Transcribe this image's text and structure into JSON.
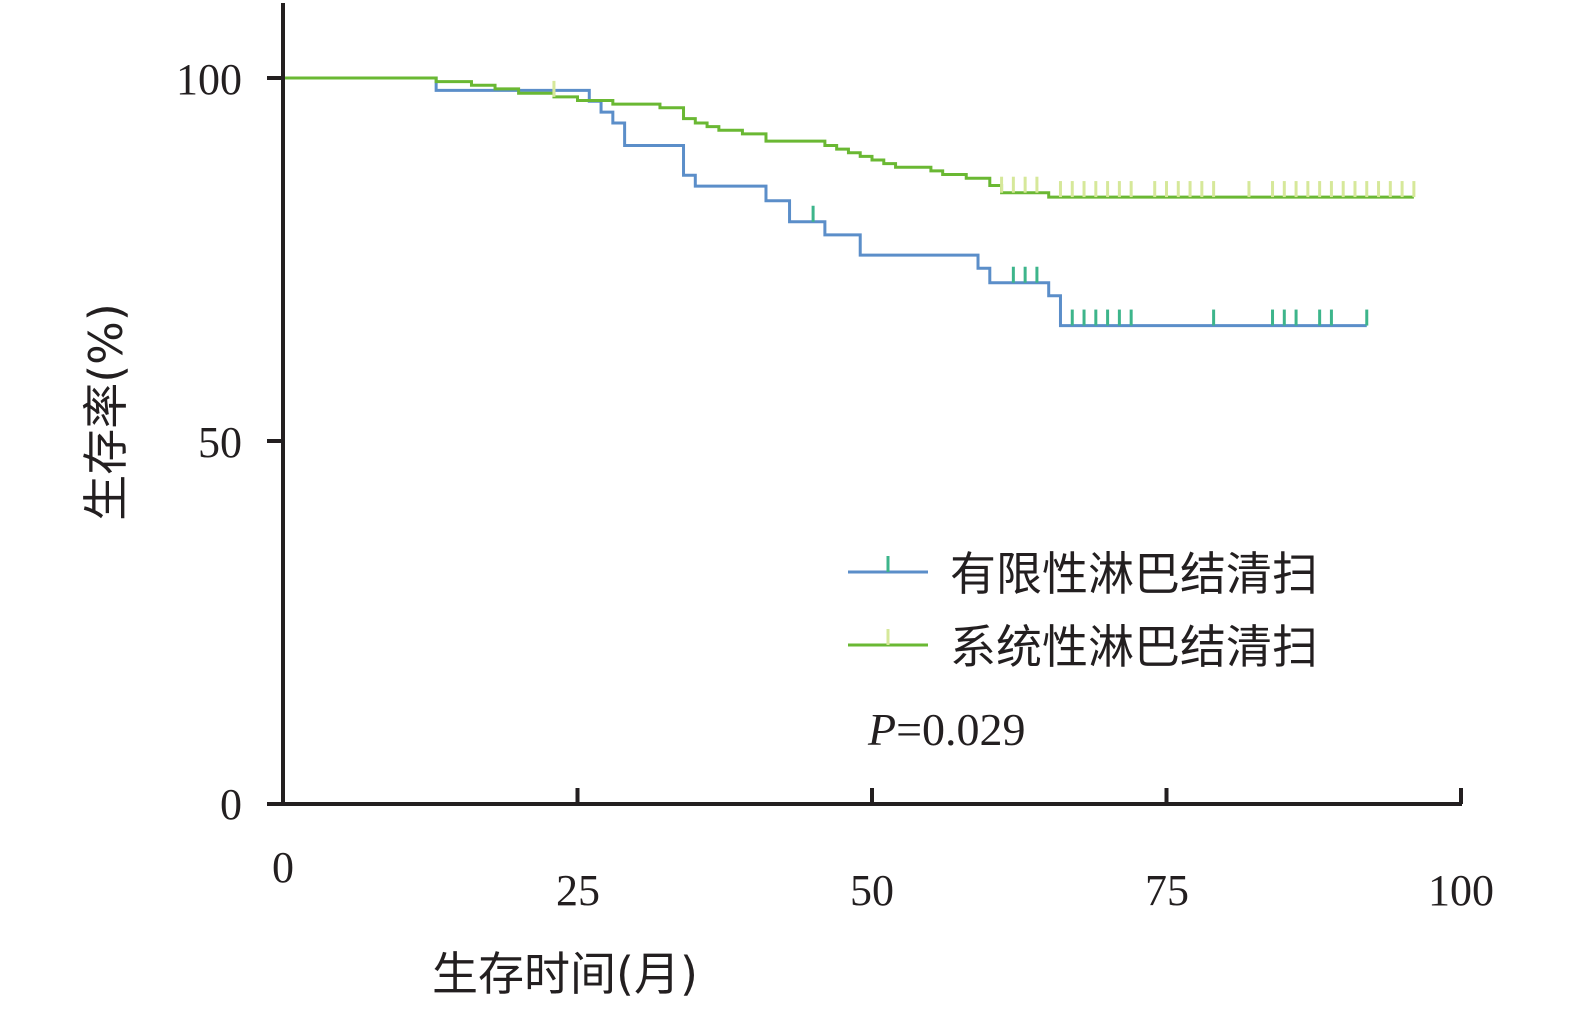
{
  "chart_data": {
    "type": "line",
    "step": true,
    "xlabel": "生存时间(月)",
    "ylabel": "生存率(%)",
    "xlim": [
      0,
      100
    ],
    "ylim": [
      0,
      100
    ],
    "xticks": [
      "0",
      "25",
      "50",
      "75",
      "100"
    ],
    "yticks": [
      "0",
      "50",
      "100"
    ],
    "legend_position": "bottom-right",
    "annotation": {
      "p_label": "P",
      "p_value": "=0.029"
    },
    "series": [
      {
        "name": "有限性淋巴结清扫",
        "color": "#5b8ec9",
        "censor_color": "#3db58b",
        "steps": [
          [
            0,
            100
          ],
          [
            13,
            98.3
          ],
          [
            26,
            96.8
          ],
          [
            27,
            95.3
          ],
          [
            28,
            93.8
          ],
          [
            29,
            90.7
          ],
          [
            34,
            86.6
          ],
          [
            35,
            85.1
          ],
          [
            41,
            83.1
          ],
          [
            43,
            80.2
          ],
          [
            46,
            78.4
          ],
          [
            49,
            75.6
          ],
          [
            59,
            73.8
          ],
          [
            60,
            71.8
          ],
          [
            65,
            70.0
          ],
          [
            66,
            65.9
          ],
          [
            92,
            65.9
          ]
        ],
        "censors": [
          45,
          62,
          63,
          64,
          67,
          68,
          69,
          70,
          71,
          72,
          79,
          84,
          85,
          86,
          88,
          89,
          92
        ]
      },
      {
        "name": "系统性淋巴结清扫",
        "color": "#6ab833",
        "censor_color": "#d6e89a",
        "steps": [
          [
            0,
            100
          ],
          [
            13,
            99.5
          ],
          [
            16,
            99.0
          ],
          [
            18,
            98.5
          ],
          [
            20,
            97.9
          ],
          [
            23,
            97.4
          ],
          [
            25,
            96.9
          ],
          [
            28,
            96.4
          ],
          [
            32,
            95.9
          ],
          [
            34,
            94.4
          ],
          [
            35,
            93.8
          ],
          [
            36,
            93.3
          ],
          [
            37,
            92.8
          ],
          [
            39,
            92.3
          ],
          [
            41,
            91.3
          ],
          [
            46,
            90.7
          ],
          [
            47,
            90.2
          ],
          [
            48,
            89.7
          ],
          [
            49,
            89.2
          ],
          [
            50,
            88.7
          ],
          [
            51,
            88.2
          ],
          [
            52,
            87.7
          ],
          [
            55,
            87.2
          ],
          [
            56,
            86.7
          ],
          [
            58,
            86.2
          ],
          [
            60,
            85.2
          ],
          [
            61,
            84.2
          ],
          [
            65,
            83.6
          ],
          [
            96,
            83.6
          ]
        ],
        "censors": [
          23,
          61,
          62,
          63,
          64,
          66,
          67,
          68,
          69,
          70,
          71,
          72,
          74,
          75,
          76,
          77,
          78,
          79,
          82,
          84,
          85,
          86,
          87,
          88,
          89,
          90,
          91,
          92,
          93,
          94,
          95,
          96
        ]
      }
    ]
  }
}
